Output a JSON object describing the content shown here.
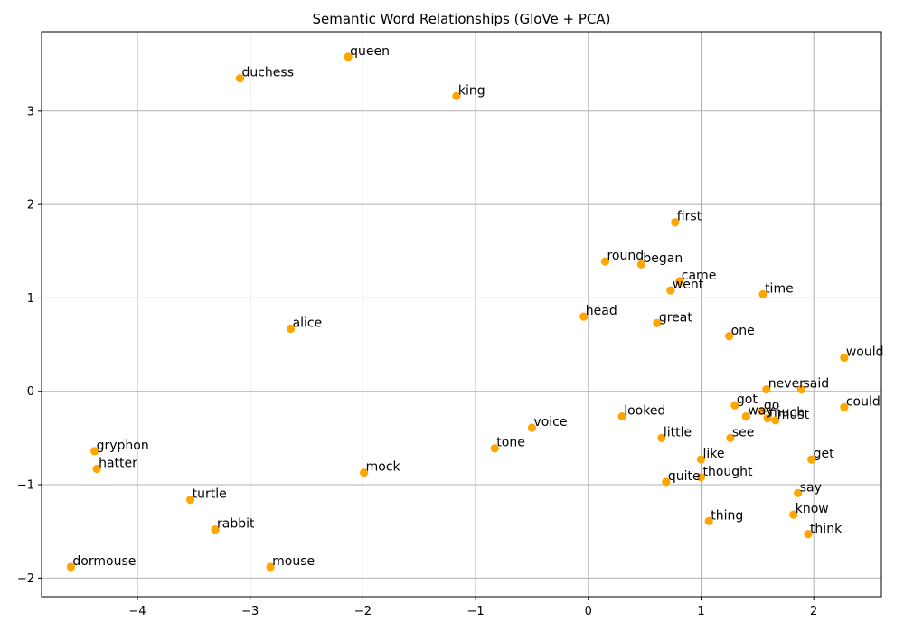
{
  "chart_data": {
    "type": "scatter",
    "title": "Semantic Word Relationships (GloVe + PCA)",
    "xlabel": "",
    "ylabel": "",
    "xlim": [
      -4.85,
      2.6
    ],
    "ylim": [
      -2.2,
      3.85
    ],
    "x_ticks": [
      -4,
      -3,
      -2,
      -1,
      0,
      1,
      2
    ],
    "x_tick_labels": [
      "−4",
      "−3",
      "−2",
      "−1",
      "0",
      "1",
      "2"
    ],
    "y_ticks": [
      -2,
      -1,
      0,
      1,
      2,
      3
    ],
    "y_tick_labels": [
      "−2",
      "−1",
      "0",
      "1",
      "2",
      "3"
    ],
    "grid": true,
    "marker_color": "#FFA500",
    "points": [
      {
        "label": "queen",
        "x": -2.13,
        "y": 3.58
      },
      {
        "label": "duchess",
        "x": -3.09,
        "y": 3.35
      },
      {
        "label": "king",
        "x": -1.17,
        "y": 3.16
      },
      {
        "label": "first",
        "x": 0.77,
        "y": 1.81
      },
      {
        "label": "round",
        "x": 0.15,
        "y": 1.39
      },
      {
        "label": "began",
        "x": 0.47,
        "y": 1.36
      },
      {
        "label": "came",
        "x": 0.81,
        "y": 1.18
      },
      {
        "label": "went",
        "x": 0.73,
        "y": 1.08
      },
      {
        "label": "time",
        "x": 1.55,
        "y": 1.04
      },
      {
        "label": "head",
        "x": -0.04,
        "y": 0.8
      },
      {
        "label": "great",
        "x": 0.61,
        "y": 0.73
      },
      {
        "label": "alice",
        "x": -2.64,
        "y": 0.67
      },
      {
        "label": "one",
        "x": 1.25,
        "y": 0.59
      },
      {
        "label": "would",
        "x": 2.27,
        "y": 0.36
      },
      {
        "label": "never",
        "x": 1.58,
        "y": 0.02
      },
      {
        "label": "said",
        "x": 1.89,
        "y": 0.02
      },
      {
        "label": "got",
        "x": 1.3,
        "y": -0.15
      },
      {
        "label": "could",
        "x": 2.27,
        "y": -0.17
      },
      {
        "label": "go",
        "x": 1.54,
        "y": -0.21
      },
      {
        "label": "way",
        "x": 1.4,
        "y": -0.27
      },
      {
        "label": "much",
        "x": 1.59,
        "y": -0.29
      },
      {
        "label": "must",
        "x": 1.66,
        "y": -0.31
      },
      {
        "label": "looked",
        "x": 0.3,
        "y": -0.27
      },
      {
        "label": "voice",
        "x": -0.5,
        "y": -0.39
      },
      {
        "label": "little",
        "x": 0.65,
        "y": -0.5
      },
      {
        "label": "see",
        "x": 1.26,
        "y": -0.5
      },
      {
        "label": "tone",
        "x": -0.83,
        "y": -0.61
      },
      {
        "label": "gryphon",
        "x": -4.38,
        "y": -0.64
      },
      {
        "label": "like",
        "x": 1.0,
        "y": -0.73
      },
      {
        "label": "get",
        "x": 1.98,
        "y": -0.73
      },
      {
        "label": "hatter",
        "x": -4.36,
        "y": -0.83
      },
      {
        "label": "mock",
        "x": -1.99,
        "y": -0.87
      },
      {
        "label": "thought",
        "x": 1.0,
        "y": -0.92
      },
      {
        "label": "quite",
        "x": 0.69,
        "y": -0.97
      },
      {
        "label": "say",
        "x": 1.86,
        "y": -1.09
      },
      {
        "label": "turtle",
        "x": -3.53,
        "y": -1.16
      },
      {
        "label": "know",
        "x": 1.82,
        "y": -1.32
      },
      {
        "label": "thing",
        "x": 1.07,
        "y": -1.39
      },
      {
        "label": "rabbit",
        "x": -3.31,
        "y": -1.48
      },
      {
        "label": "think",
        "x": 1.95,
        "y": -1.53
      },
      {
        "label": "dormouse",
        "x": -4.59,
        "y": -1.88
      },
      {
        "label": "mouse",
        "x": -2.82,
        "y": -1.88
      }
    ]
  }
}
